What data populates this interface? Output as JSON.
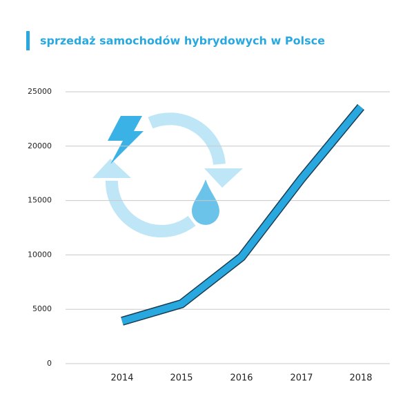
{
  "chart_data": {
    "type": "line",
    "title": "sprzedaż samochodów hybrydowych w Polsce",
    "categories": [
      "2014",
      "2015",
      "2016",
      "2017",
      "2018"
    ],
    "values": [
      3900,
      5500,
      9800,
      17000,
      23600
    ],
    "color": "#29a8df",
    "ylim": [
      0,
      25000
    ],
    "yticks": [
      0,
      5000,
      10000,
      15000,
      20000,
      25000
    ],
    "grid": true
  }
}
